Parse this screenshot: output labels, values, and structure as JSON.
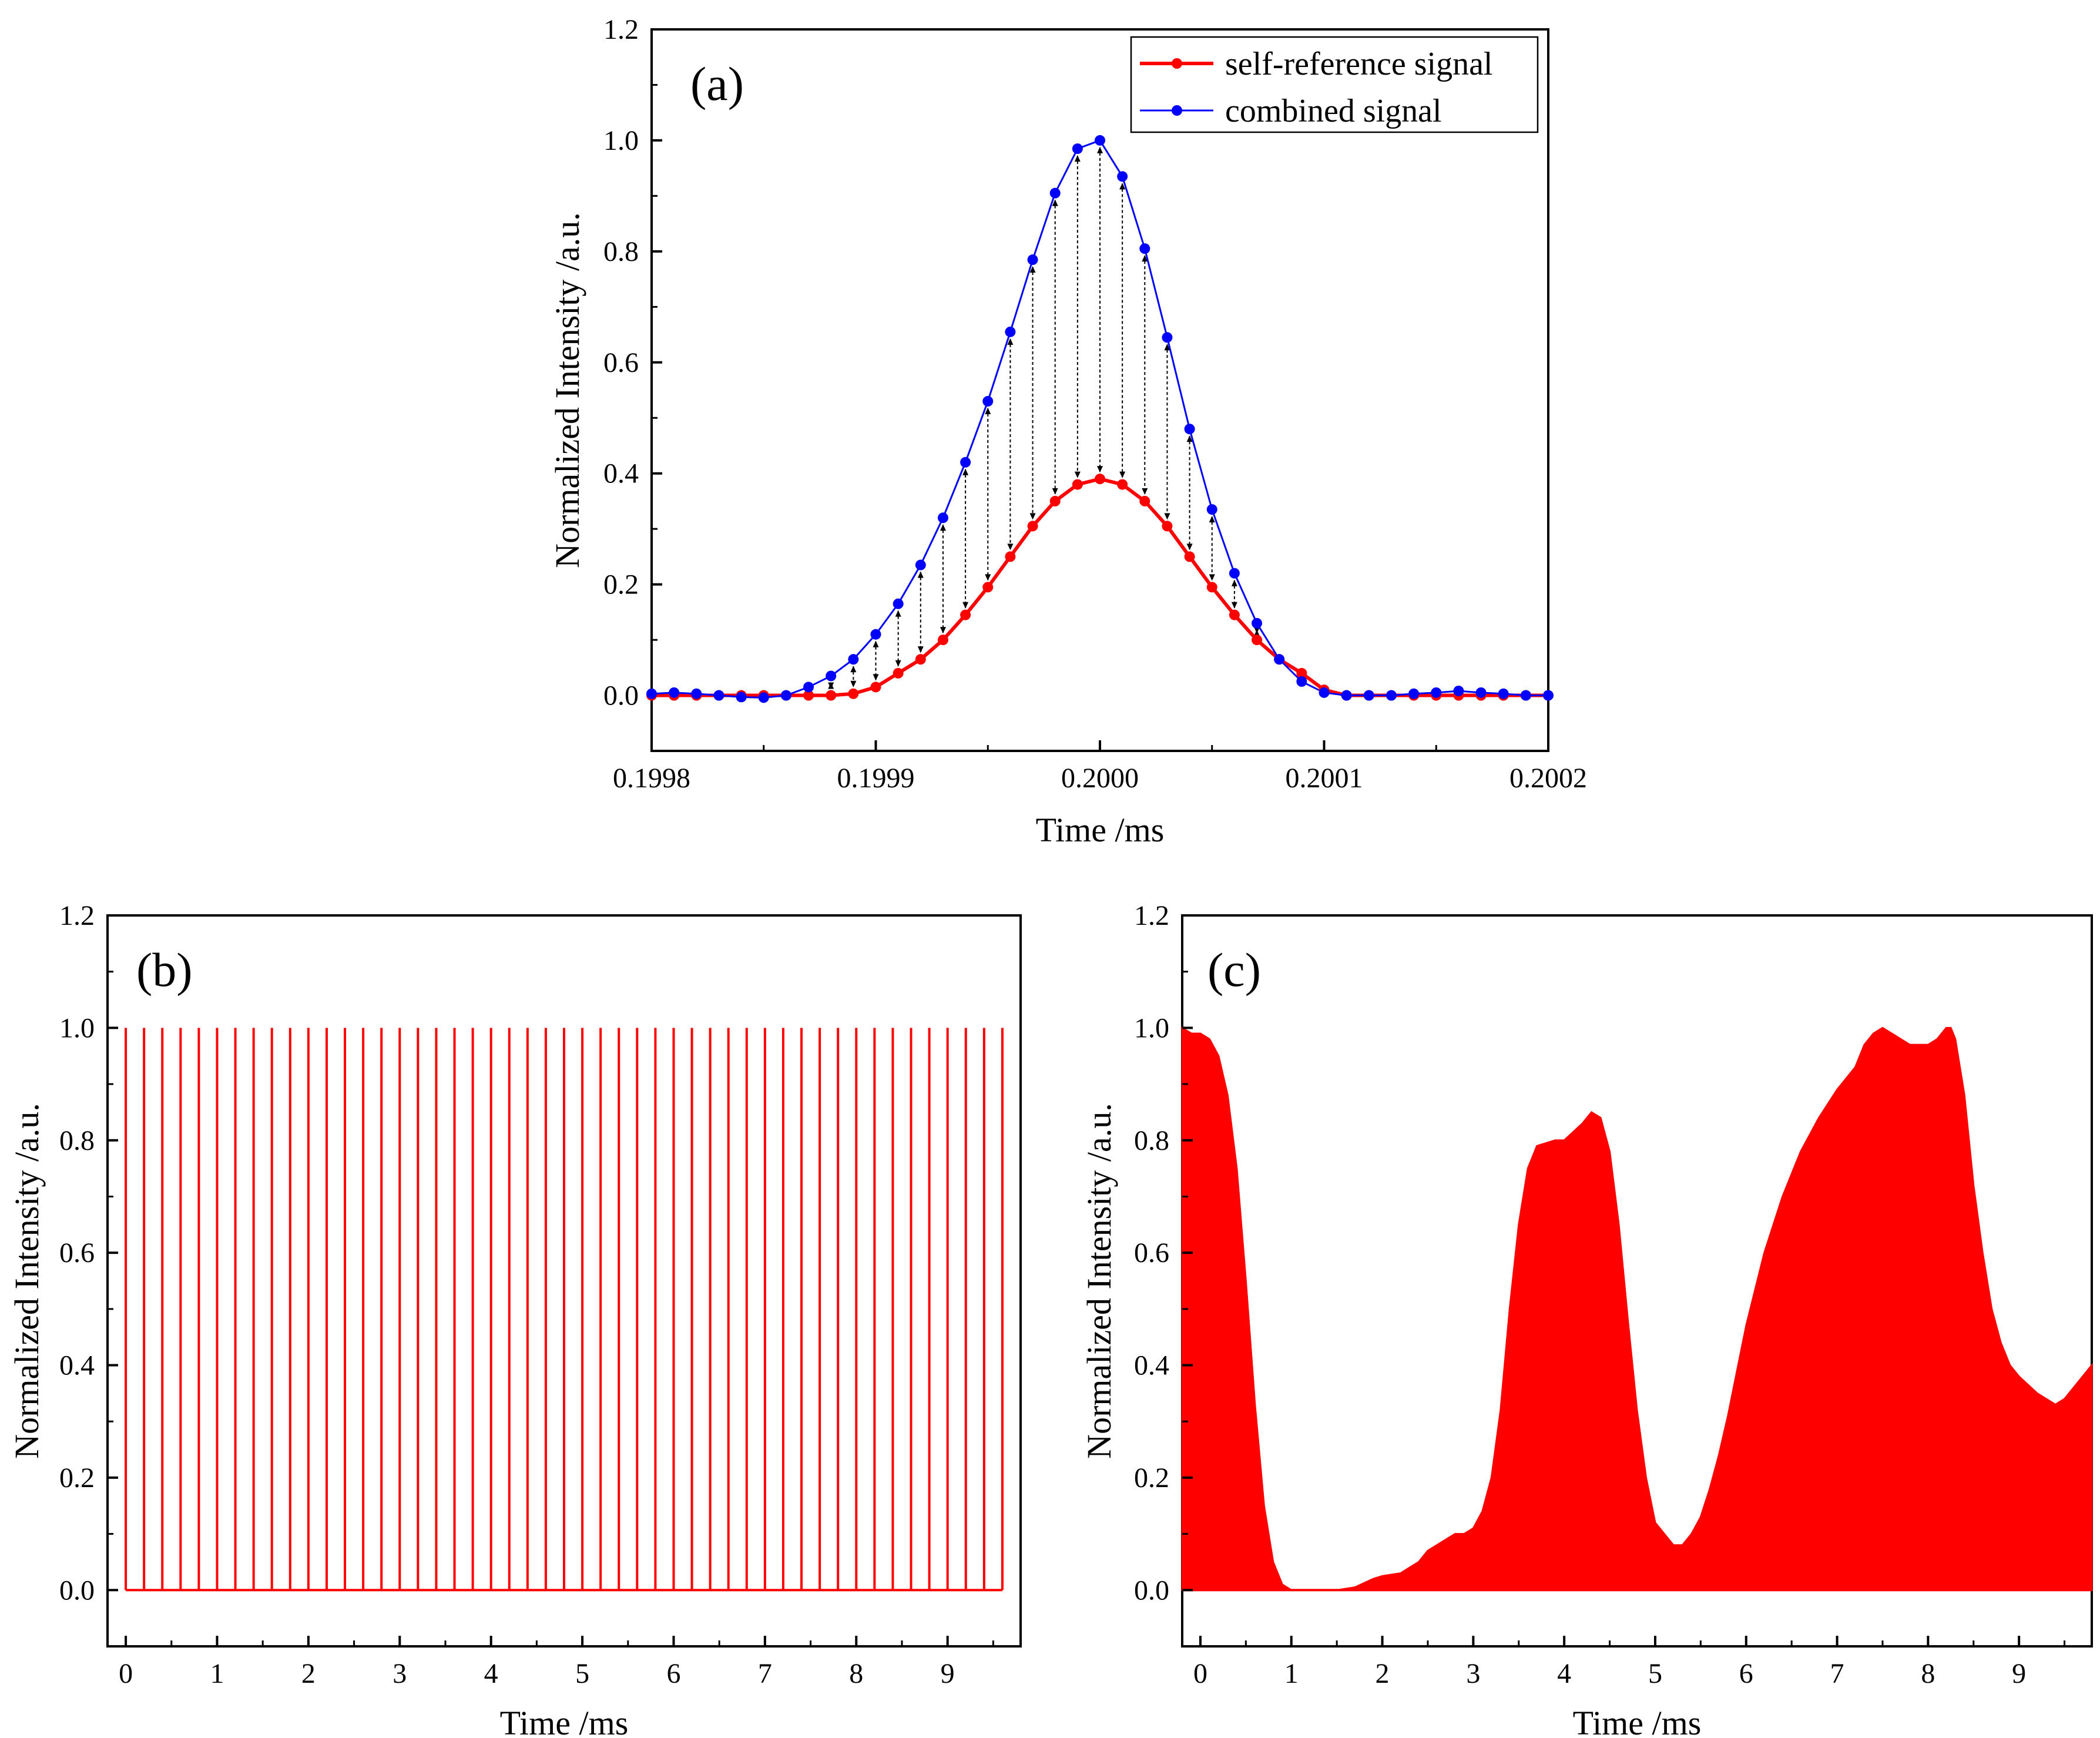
{
  "figure": {
    "colors": {
      "red": "#ff0000",
      "blue": "#0000ff",
      "axis": "#000000",
      "arrow": "#000000"
    }
  },
  "chart_data": [
    {
      "id": "a",
      "panel_label": "(a)",
      "type": "line",
      "xlabel": "Time /ms",
      "ylabel": "Normalized Intensity /a.u.",
      "xlim": [
        0.1998,
        0.2002
      ],
      "ylim": [
        -0.1,
        1.2
      ],
      "xticks": [
        0.1998,
        0.1999,
        0.2,
        0.2001,
        0.2002
      ],
      "xtick_labels": [
        "0.1998",
        "0.1999",
        "0.2000",
        "0.2001",
        "0.2002"
      ],
      "yticks": [
        0.0,
        0.2,
        0.4,
        0.6,
        0.8,
        1.0,
        1.2
      ],
      "ytick_labels": [
        "0.0",
        "0.2",
        "0.4",
        "0.6",
        "0.8",
        "1.0",
        "1.2"
      ],
      "x": [
        0.1998,
        0.19981,
        0.19982,
        0.19983,
        0.19984,
        0.19985,
        0.19986,
        0.19987,
        0.19988,
        0.19989,
        0.1999,
        0.19991,
        0.19992,
        0.19993,
        0.19994,
        0.19995,
        0.19996,
        0.19997,
        0.19998,
        0.19999,
        0.2,
        0.20001,
        0.20002,
        0.20003,
        0.20004,
        0.20005,
        0.20006,
        0.20007,
        0.20008,
        0.20009,
        0.2001,
        0.20011,
        0.20012,
        0.20013,
        0.20014,
        0.20015,
        0.20016,
        0.20017,
        0.20018,
        0.20019,
        0.2002
      ],
      "series": [
        {
          "name": "self-reference signal",
          "color": "#ff0000",
          "values": [
            0.0,
            0.0,
            0.0,
            0.0,
            0.0,
            0.0,
            0.0,
            0.0,
            0.0,
            0.003,
            0.015,
            0.04,
            0.065,
            0.1,
            0.145,
            0.195,
            0.25,
            0.305,
            0.35,
            0.38,
            0.39,
            0.38,
            0.35,
            0.305,
            0.25,
            0.195,
            0.145,
            0.1,
            0.065,
            0.04,
            0.01,
            0.0,
            0.0,
            0.0,
            0.0,
            0.0,
            0.0,
            0.0,
            0.0,
            0.0,
            0.0
          ]
        },
        {
          "name": "combined signal",
          "color": "#0000ff",
          "values": [
            0.003,
            0.005,
            0.003,
            0.0,
            -0.003,
            -0.004,
            0.0,
            0.015,
            0.035,
            0.065,
            0.11,
            0.165,
            0.235,
            0.32,
            0.42,
            0.53,
            0.655,
            0.785,
            0.905,
            0.985,
            1.0,
            0.935,
            0.805,
            0.645,
            0.48,
            0.335,
            0.22,
            0.13,
            0.065,
            0.025,
            0.005,
            0.0,
            0.0,
            0.0,
            0.003,
            0.005,
            0.008,
            0.005,
            0.003,
            0.0,
            0.0
          ]
        }
      ],
      "arrows": "dashed vertical arrows from combined signal down to self-reference signal at every sample point",
      "legend_position": "top-right"
    },
    {
      "id": "b",
      "panel_label": "(b)",
      "type": "line",
      "xlabel": "Time /ms",
      "ylabel": "Normalized Intensity /a.u.",
      "xlim": [
        -0.2,
        9.8
      ],
      "ylim": [
        -0.1,
        1.2
      ],
      "xticks": [
        0,
        1,
        2,
        3,
        4,
        5,
        6,
        7,
        8,
        9
      ],
      "xtick_labels": [
        "0",
        "1",
        "2",
        "3",
        "4",
        "5",
        "6",
        "7",
        "8",
        "9"
      ],
      "yticks": [
        0.0,
        0.2,
        0.4,
        0.6,
        0.8,
        1.0,
        1.2
      ],
      "ytick_labels": [
        "0.0",
        "0.2",
        "0.4",
        "0.6",
        "0.8",
        "1.0",
        "1.2"
      ],
      "pulse_period": 0.2,
      "pulse_start": 0.0,
      "pulse_count": 49,
      "pulse_height": 1.0,
      "baseline": 0.0,
      "color": "#ff0000"
    },
    {
      "id": "c",
      "panel_label": "(c)",
      "type": "area",
      "xlabel": "Time /ms",
      "ylabel": "Normalized Intensity /a.u.",
      "xlim": [
        -0.2,
        9.8
      ],
      "ylim": [
        -0.1,
        1.2
      ],
      "xticks": [
        0,
        1,
        2,
        3,
        4,
        5,
        6,
        7,
        8,
        9
      ],
      "xtick_labels": [
        "0",
        "1",
        "2",
        "3",
        "4",
        "5",
        "6",
        "7",
        "8",
        "9"
      ],
      "yticks": [
        0.0,
        0.2,
        0.4,
        0.6,
        0.8,
        1.0,
        1.2
      ],
      "ytick_labels": [
        "0.0",
        "0.2",
        "0.4",
        "0.6",
        "0.8",
        "1.0",
        "1.2"
      ],
      "envelope_x": [
        -0.2,
        -0.1,
        0.0,
        0.1,
        0.2,
        0.3,
        0.4,
        0.5,
        0.6,
        0.7,
        0.8,
        0.9,
        1.0,
        1.2,
        1.5,
        1.7,
        1.9,
        2.0,
        2.2,
        2.4,
        2.5,
        2.7,
        2.8,
        2.9,
        3.0,
        3.1,
        3.2,
        3.3,
        3.4,
        3.5,
        3.6,
        3.7,
        3.9,
        4.0,
        4.2,
        4.3,
        4.4,
        4.5,
        4.6,
        4.7,
        4.8,
        4.9,
        5.0,
        5.1,
        5.2,
        5.3,
        5.4,
        5.5,
        5.6,
        5.7,
        5.8,
        5.9,
        6.0,
        6.2,
        6.4,
        6.6,
        6.8,
        7.0,
        7.2,
        7.3,
        7.4,
        7.5,
        7.6,
        7.7,
        7.8,
        7.9,
        8.0,
        8.1,
        8.2,
        8.25,
        8.3,
        8.4,
        8.5,
        8.6,
        8.7,
        8.8,
        8.9,
        9.0,
        9.2,
        9.4,
        9.5,
        9.6,
        9.7,
        9.8
      ],
      "envelope_y": [
        1.0,
        0.99,
        0.99,
        0.98,
        0.95,
        0.88,
        0.75,
        0.55,
        0.33,
        0.15,
        0.05,
        0.01,
        0.0,
        0.0,
        0.0,
        0.005,
        0.02,
        0.025,
        0.03,
        0.05,
        0.07,
        0.09,
        0.1,
        0.1,
        0.11,
        0.14,
        0.2,
        0.32,
        0.5,
        0.65,
        0.75,
        0.79,
        0.8,
        0.8,
        0.83,
        0.85,
        0.84,
        0.78,
        0.65,
        0.48,
        0.32,
        0.2,
        0.12,
        0.1,
        0.08,
        0.08,
        0.1,
        0.13,
        0.18,
        0.24,
        0.31,
        0.39,
        0.47,
        0.6,
        0.7,
        0.78,
        0.84,
        0.89,
        0.93,
        0.97,
        0.99,
        1.0,
        0.99,
        0.98,
        0.97,
        0.97,
        0.97,
        0.98,
        1.0,
        1.0,
        0.98,
        0.88,
        0.72,
        0.6,
        0.5,
        0.44,
        0.4,
        0.38,
        0.35,
        0.33,
        0.34,
        0.36,
        0.38,
        0.4
      ],
      "baseline": 0.0,
      "color": "#ff0000"
    }
  ]
}
